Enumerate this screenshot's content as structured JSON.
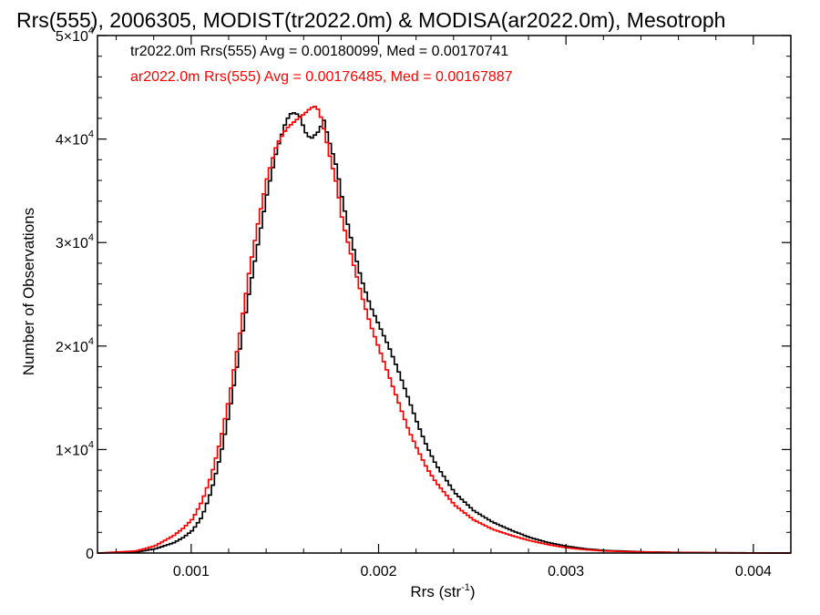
{
  "chart_data": {
    "type": "line",
    "title": "Rrs(555), 2006305, MODIST(tr2022.0m) & MODISA(ar2022.0m), Mesotroph",
    "xlabel": "Rrs (str",
    "xlabel_sup": "-1",
    "xlabel_suffix": ")",
    "ylabel": "Number of Observations",
    "xlim": [
      0.0005,
      0.0042
    ],
    "ylim": [
      0,
      50000
    ],
    "xticks": [
      {
        "value": 0.001,
        "label": "0.001"
      },
      {
        "value": 0.002,
        "label": "0.002"
      },
      {
        "value": 0.003,
        "label": "0.003"
      },
      {
        "value": 0.004,
        "label": "0.004"
      }
    ],
    "yticks": [
      {
        "value": 0,
        "base": "0",
        "exp": ""
      },
      {
        "value": 10000,
        "base": "1×10",
        "exp": "4"
      },
      {
        "value": 20000,
        "base": "2×10",
        "exp": "4"
      },
      {
        "value": 30000,
        "base": "3×10",
        "exp": "4"
      },
      {
        "value": 40000,
        "base": "4×10",
        "exp": "4"
      },
      {
        "value": 50000,
        "base": "5×10",
        "exp": "4"
      }
    ],
    "grid": false,
    "legend_position": "top-left",
    "series": [
      {
        "name": "tr2022.0m Rrs(555) Avg = 0.00180099, Med = 0.00170741",
        "color": "#000000",
        "x": [
          0.0005,
          0.0007,
          0.0008,
          0.0009,
          0.00095,
          0.001,
          0.00105,
          0.0011,
          0.00115,
          0.0012,
          0.00125,
          0.0013,
          0.00135,
          0.0014,
          0.00145,
          0.0015,
          0.00153,
          0.00157,
          0.0016,
          0.00163,
          0.00167,
          0.0017,
          0.00173,
          0.00177,
          0.0018,
          0.00185,
          0.0019,
          0.00195,
          0.002,
          0.00205,
          0.0021,
          0.00215,
          0.0022,
          0.00225,
          0.0023,
          0.0024,
          0.0025,
          0.0026,
          0.0027,
          0.0028,
          0.0029,
          0.003,
          0.0031,
          0.0032,
          0.0034,
          0.0036,
          0.0038,
          0.004,
          0.0042
        ],
        "y": [
          0,
          100,
          400,
          1000,
          1500,
          2200,
          3500,
          6000,
          9500,
          14000,
          19500,
          25000,
          30000,
          35000,
          39000,
          41800,
          42600,
          42300,
          40700,
          40000,
          40700,
          41800,
          39700,
          37200,
          34000,
          30000,
          26500,
          23800,
          21800,
          19800,
          17500,
          15000,
          12500,
          10300,
          8500,
          5800,
          4100,
          3000,
          2200,
          1500,
          1000,
          650,
          400,
          250,
          120,
          60,
          30,
          15,
          0
        ]
      },
      {
        "name": "ar2022.0m Rrs(555) Avg = 0.00176485, Med = 0.00167887",
        "color": "#ff0000",
        "x": [
          0.0005,
          0.0007,
          0.0008,
          0.0009,
          0.00095,
          0.001,
          0.00105,
          0.0011,
          0.00115,
          0.0012,
          0.00125,
          0.0013,
          0.00135,
          0.0014,
          0.00145,
          0.0015,
          0.00155,
          0.0016,
          0.00163,
          0.00166,
          0.00168,
          0.0017,
          0.00173,
          0.00177,
          0.0018,
          0.00185,
          0.0019,
          0.00195,
          0.002,
          0.00205,
          0.0021,
          0.00215,
          0.0022,
          0.00225,
          0.0023,
          0.0024,
          0.0025,
          0.0026,
          0.0027,
          0.0028,
          0.0029,
          0.003,
          0.0031,
          0.0032,
          0.0034,
          0.0036,
          0.0038,
          0.004,
          0.0042
        ],
        "y": [
          0,
          200,
          700,
          1700,
          2400,
          3300,
          5000,
          7500,
          11000,
          15500,
          21000,
          27000,
          32000,
          36500,
          39500,
          41000,
          41800,
          42500,
          43000,
          43200,
          42400,
          41000,
          38500,
          35500,
          32000,
          28500,
          25000,
          22000,
          19500,
          17000,
          14500,
          12000,
          10000,
          8200,
          6800,
          4600,
          3200,
          2300,
          1700,
          1200,
          800,
          500,
          320,
          200,
          100,
          50,
          25,
          10,
          0
        ]
      }
    ]
  }
}
